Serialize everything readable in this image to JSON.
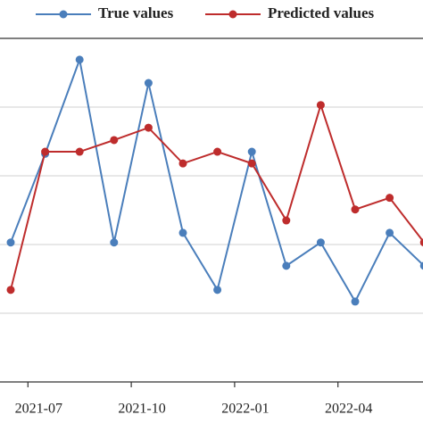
{
  "chart_data": {
    "type": "line",
    "x": [
      "2021-06",
      "2021-07",
      "2021-08",
      "2021-09",
      "2021-10",
      "2021-11",
      "2021-12",
      "2022-01",
      "2022-02",
      "2022-03",
      "2022-04",
      "2022-05",
      "2022-06"
    ],
    "series": [
      {
        "name": "True values",
        "color": "#4a7ebb",
        "values": [
          2.03,
          3.32,
          4.69,
          2.03,
          4.35,
          2.17,
          1.34,
          3.35,
          1.69,
          2.03,
          1.17,
          2.17,
          1.69
        ]
      },
      {
        "name": "Predicted values",
        "color": "#be2c2c",
        "values": [
          1.34,
          3.35,
          3.35,
          3.52,
          3.7,
          3.18,
          3.35,
          3.18,
          2.35,
          4.03,
          2.51,
          2.68,
          2.03
        ]
      }
    ],
    "xticks": [
      "2021-07",
      "2021-10",
      "2022-01",
      "2022-04"
    ],
    "ylim": [
      0,
      5
    ],
    "yticks": [
      1,
      2,
      3,
      4
    ],
    "grid": true
  }
}
